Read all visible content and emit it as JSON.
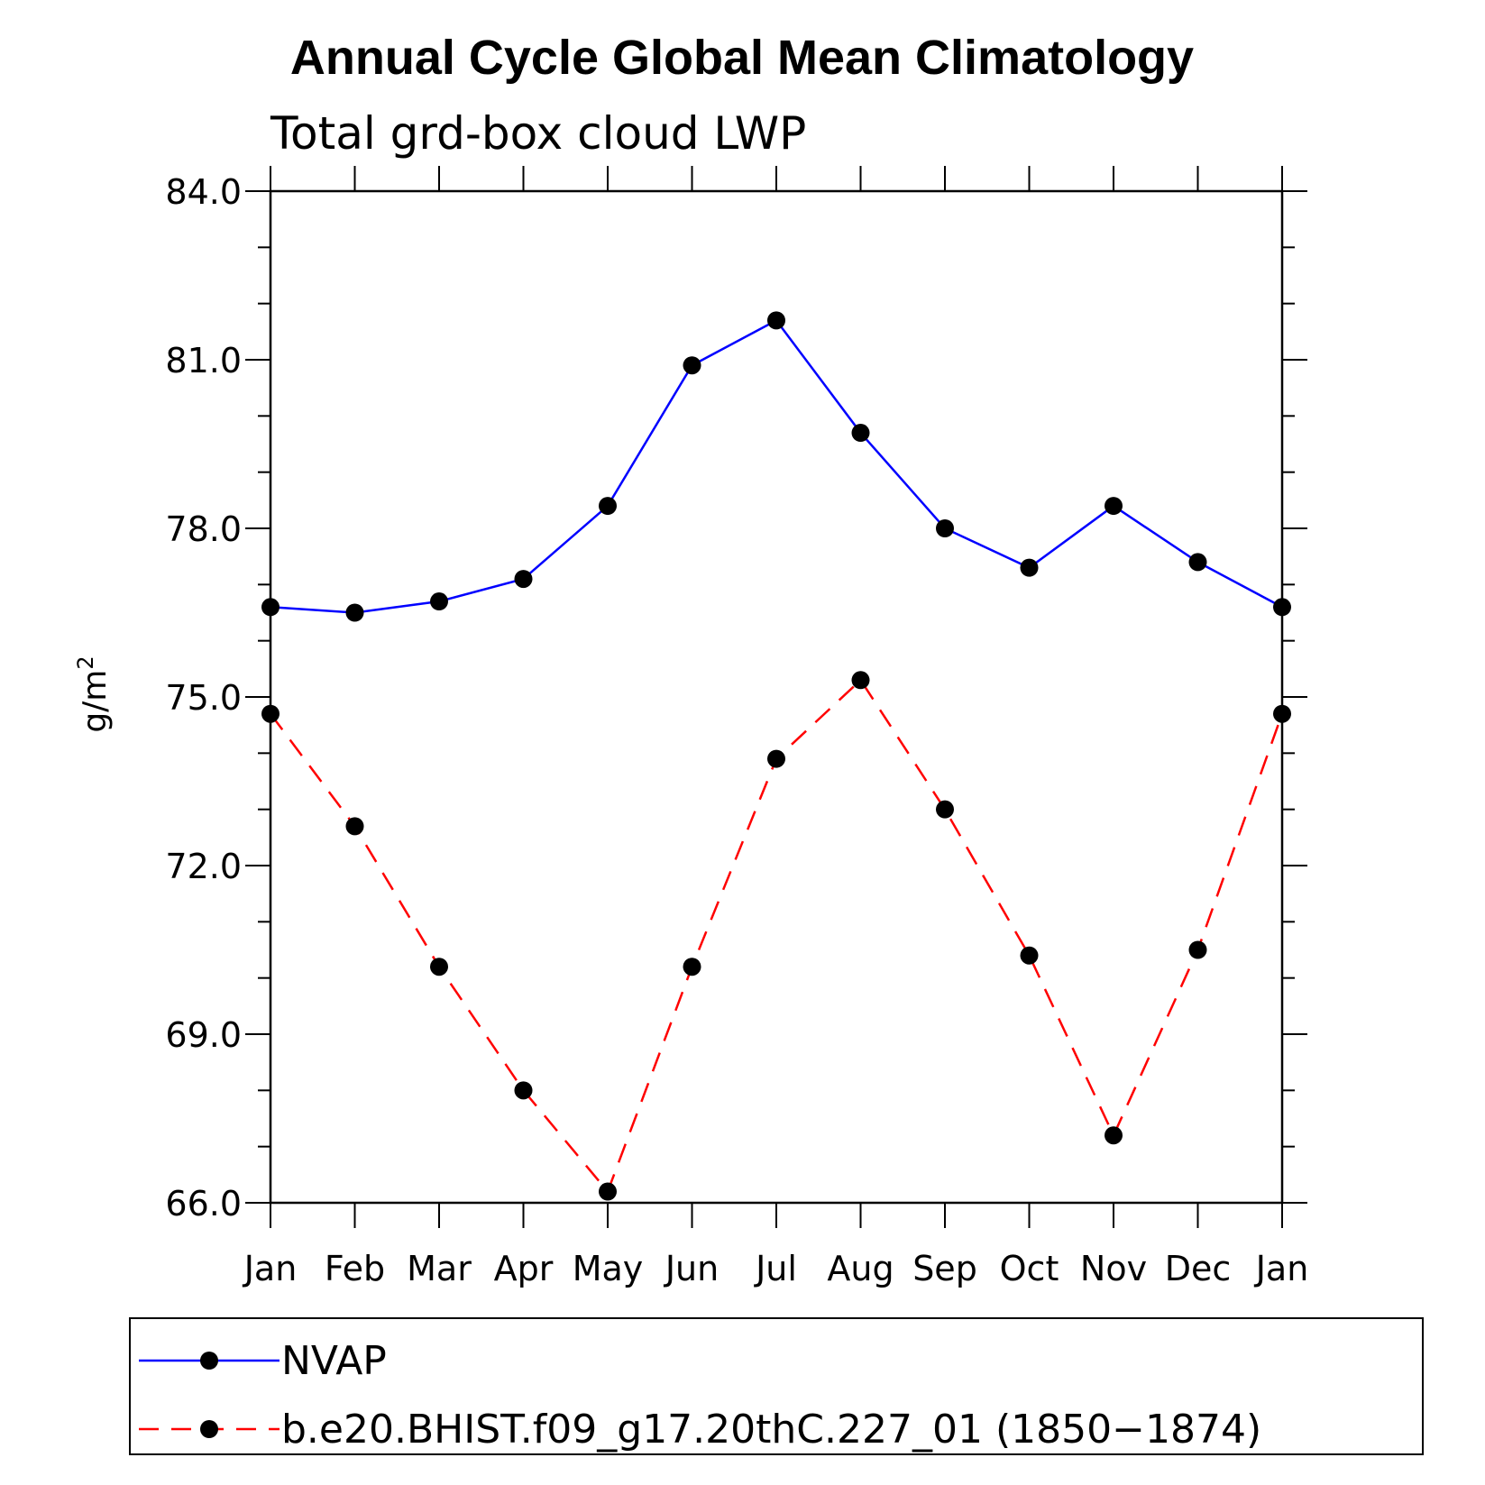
{
  "chart_data": {
    "type": "line",
    "title": "Annual Cycle Global Mean Climatology",
    "subtitle": "Total grd-box cloud LWP",
    "ylabel": "g/m",
    "ylabel_superscript": "2",
    "ylim": [
      66,
      84
    ],
    "yticks": [
      66.0,
      69.0,
      72.0,
      75.0,
      78.0,
      81.0,
      84.0
    ],
    "ytick_labels": [
      "66.0",
      "69.0",
      "72.0",
      "75.0",
      "78.0",
      "81.0",
      "84.0"
    ],
    "categories": [
      "Jan",
      "Feb",
      "Mar",
      "Apr",
      "May",
      "Jun",
      "Jul",
      "Aug",
      "Sep",
      "Oct",
      "Nov",
      "Dec",
      "Jan"
    ],
    "series": [
      {
        "name": "NVAP",
        "color": "#0000ff",
        "style": "solid",
        "values": [
          76.6,
          76.5,
          76.7,
          77.1,
          78.4,
          80.9,
          81.7,
          79.7,
          78.0,
          77.3,
          78.4,
          77.4,
          76.6
        ]
      },
      {
        "name": "b.e20.BHIST.f09_g17.20thC.227_01 (1850−1874)",
        "color": "#ff0000",
        "style": "dashed",
        "values": [
          74.7,
          72.7,
          70.2,
          68.0,
          66.2,
          70.2,
          73.9,
          75.3,
          73.0,
          70.4,
          67.2,
          70.5,
          74.7
        ]
      }
    ],
    "legend_position": "bottom"
  }
}
